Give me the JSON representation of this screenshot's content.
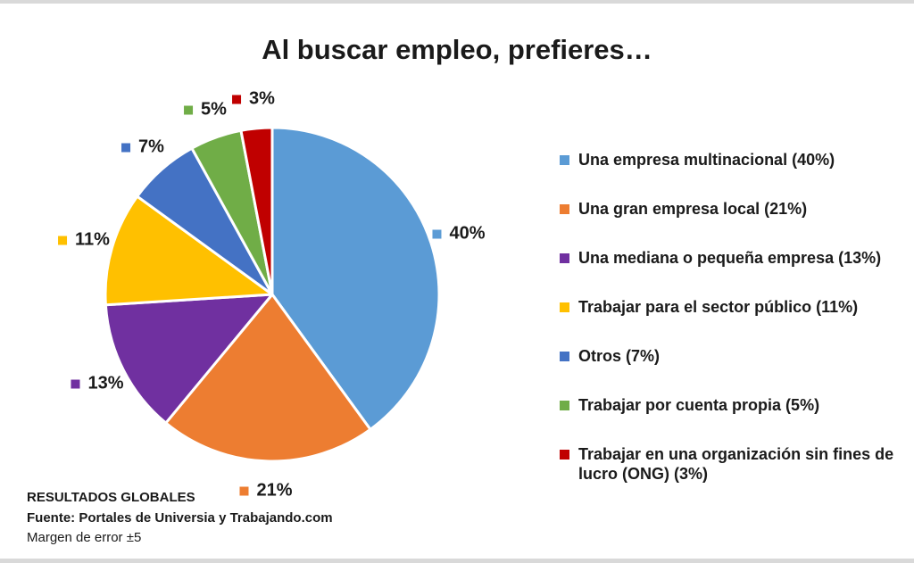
{
  "chart_data": {
    "type": "pie",
    "title": "Al buscar empleo, prefieres…",
    "legend_position": "right",
    "start_angle_deg": 0,
    "direction": "clockwise",
    "slices": [
      {
        "label": "Una empresa multinacional",
        "value": 40,
        "color": "#5B9BD5",
        "legend_label": "Una empresa multinacional (40%)",
        "data_label": "40%"
      },
      {
        "label": "Una gran empresa local",
        "value": 21,
        "color": "#ED7D31",
        "legend_label": "Una gran empresa local (21%)",
        "data_label": "21%"
      },
      {
        "label": "Una mediana o pequeña empresa",
        "value": 13,
        "color": "#7030A0",
        "legend_label": "Una mediana o pequeña empresa (13%)",
        "data_label": "13%"
      },
      {
        "label": "Trabajar para el sector público",
        "value": 11,
        "color": "#FFC000",
        "legend_label": "Trabajar para el sector público (11%)",
        "data_label": "11%"
      },
      {
        "label": "Otros",
        "value": 7,
        "color": "#4472C4",
        "legend_label": "Otros (7%)",
        "data_label": "7%"
      },
      {
        "label": "Trabajar por cuenta propia",
        "value": 5,
        "color": "#70AD47",
        "legend_label": "Trabajar por cuenta propia (5%)",
        "data_label": "5%"
      },
      {
        "label": "Trabajar en una organización sin fines de lucro (ONG)",
        "value": 3,
        "color": "#C00000",
        "legend_label": "Trabajar en una organización sin fines de lucro (ONG) (3%)",
        "data_label": "3%"
      }
    ]
  },
  "footer": {
    "line1": "RESULTADOS GLOBALES",
    "line2": "Fuente: Portales de Universia y Trabajando.com",
    "line3": "Margen de error ±5"
  }
}
